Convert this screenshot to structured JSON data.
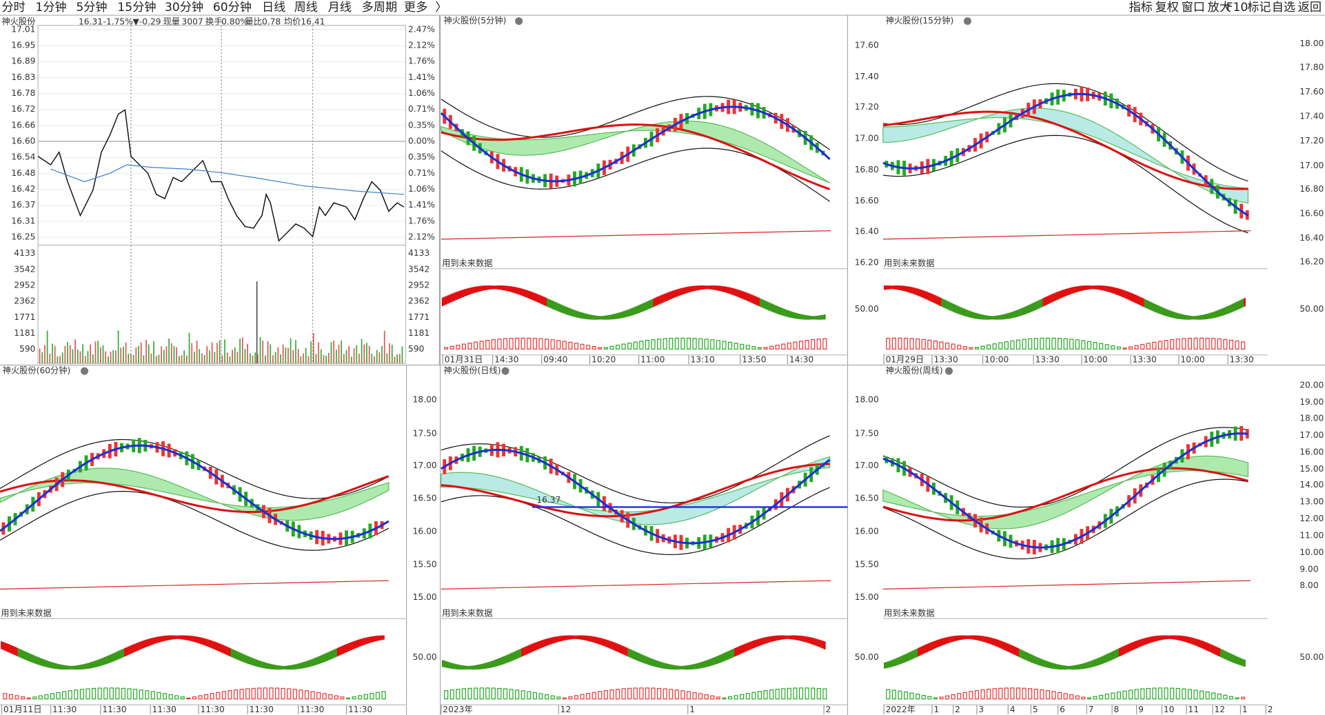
{
  "toolbar": {
    "left": [
      "分时",
      "1分钟",
      "5分钟",
      "15分钟",
      "30分钟",
      "60分钟",
      "日线",
      "周线",
      "月线",
      "多周期",
      "更多",
      "〉"
    ],
    "right": [
      "指标",
      "复权",
      "窗口",
      "放大",
      "F10",
      "标记",
      "自选",
      "返回"
    ]
  },
  "intraday": {
    "info": [
      "神火股份",
      "16.31",
      "-1.75%",
      "▼-0.29",
      "现量",
      "3007",
      "换手",
      "0.80%",
      "量比",
      "0.78",
      "均价",
      "16.41"
    ],
    "price_labels": [
      "17.01",
      "16.95",
      "16.89",
      "16.83",
      "16.78",
      "16.72",
      "16.66",
      "16.60",
      "16.54",
      "16.48",
      "16.42",
      "16.37",
      "16.31",
      "16.25"
    ],
    "pct_labels": [
      "2.47%",
      "2.12%",
      "1.76%",
      "1.41%",
      "1.06%",
      "0.71%",
      "0.35%",
      "0.00%",
      "0.35%",
      "0.71%",
      "1.06%",
      "1.41%",
      "1.76%",
      "2.12%"
    ],
    "volume_labels": [
      "4133",
      "3542",
      "2952",
      "2362",
      "1771",
      "1181",
      "590"
    ]
  },
  "panels": [
    {
      "title": "神火股份(5分钟)",
      "note": "用到未来数据",
      "times": [
        "01月31日",
        "14:30",
        "09:40",
        "10:20",
        "11:00",
        "13:10",
        "13:50",
        "14:30"
      ]
    },
    {
      "title": "神火股份(15分钟)",
      "note": "用到未来数据",
      "left_labels": [
        "17.60",
        "17.40",
        "17.20",
        "17.00",
        "16.80",
        "16.60",
        "16.40",
        "16.20"
      ],
      "right_labels": [
        "18.00",
        "17.80",
        "17.60",
        "17.40",
        "17.20",
        "17.00",
        "16.80",
        "16.60",
        "16.40",
        "16.20"
      ],
      "osc_label": "50.00",
      "right_osc_label": "50.00",
      "times": [
        "01月29日",
        "13:30",
        "10:00",
        "13:30",
        "10:00",
        "13:30",
        "10:00",
        "13:30"
      ]
    },
    {
      "title": "神火股份(60分钟)",
      "note": "用到未来数据",
      "times": [
        "01月11日",
        "11:30",
        "11:30",
        "11:30",
        "11:30",
        "11:30",
        "11:30",
        "11:30"
      ]
    },
    {
      "title": "神火股份(日线)",
      "note": "用到未来数据",
      "left_labels": [
        "18.00",
        "17.50",
        "17.00",
        "16.50",
        "16.00",
        "15.50",
        "15.00"
      ],
      "osc_label": "50.00",
      "marker": "16.37",
      "times": [
        "2023年",
        "12",
        "1",
        "2"
      ]
    },
    {
      "title": "神火股份(周线)",
      "note": "用到未来数据",
      "left_labels": [
        "18.00",
        "17.50",
        "17.00",
        "16.50",
        "16.00",
        "15.50",
        "15.00"
      ],
      "right_labels": [
        "20.00",
        "19.00",
        "18.00",
        "17.00",
        "16.00",
        "15.00",
        "14.00",
        "13.00",
        "12.00",
        "11.00",
        "10.00",
        "9.00",
        "8.00"
      ],
      "osc_label": "50.00",
      "right_osc_label": "50.00",
      "times": [
        "2022年",
        "1",
        "2",
        "3",
        "4",
        "5",
        "6",
        "7",
        "8",
        "9",
        "10",
        "11",
        "12",
        "1",
        "2"
      ]
    }
  ]
}
